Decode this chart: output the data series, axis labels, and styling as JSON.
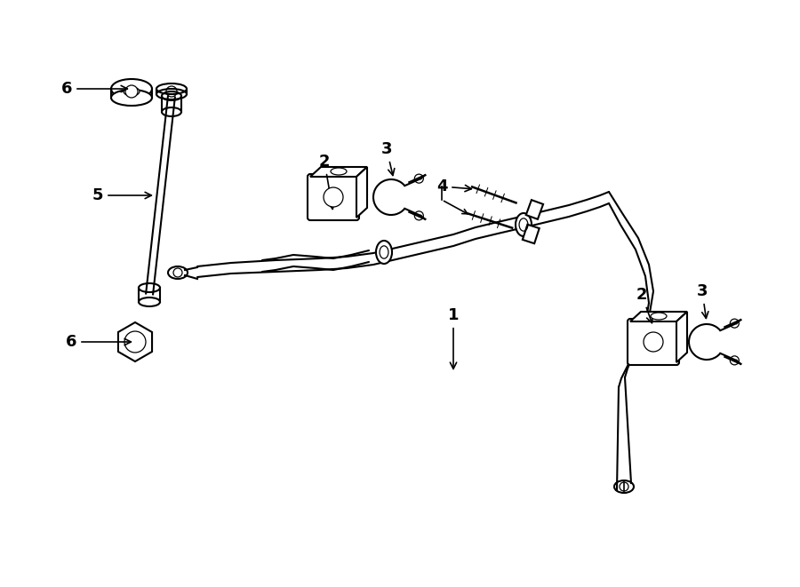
{
  "bg_color": "#ffffff",
  "lc": "#000000",
  "lw": 1.5,
  "tlw": 0.9,
  "fs": 13,
  "figsize": [
    9.0,
    6.61
  ],
  "dpi": 100
}
